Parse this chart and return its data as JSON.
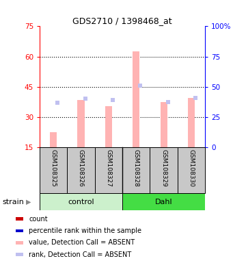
{
  "title": "GDS2710 / 1398468_at",
  "samples": [
    "GSM108325",
    "GSM108326",
    "GSM108327",
    "GSM108328",
    "GSM108329",
    "GSM108330"
  ],
  "bar_values_absent": [
    22.5,
    38.5,
    35.5,
    62.5,
    37.5,
    39.5
  ],
  "rank_absent": [
    37.0,
    39.0,
    38.5,
    45.5,
    37.5,
    39.5
  ],
  "ylim_left": [
    15,
    75
  ],
  "ylim_right": [
    0,
    100
  ],
  "yticks_left": [
    15,
    30,
    45,
    60,
    75
  ],
  "yticks_right": [
    0,
    25,
    50,
    75,
    100
  ],
  "yticklabels_right": [
    "0",
    "25",
    "50",
    "75",
    "100%"
  ],
  "bar_color_absent": "#ffb3b3",
  "rank_color_absent": "#c0c0f0",
  "bar_bottom": 15,
  "control_color": "#ccf0cc",
  "dahl_color": "#44dd44",
  "legend_items": [
    {
      "color": "#cc0000",
      "label": "count"
    },
    {
      "color": "#0000cc",
      "label": "percentile rank within the sample"
    },
    {
      "color": "#ffb3b3",
      "label": "value, Detection Call = ABSENT"
    },
    {
      "color": "#c0c0f0",
      "label": "rank, Detection Call = ABSENT"
    }
  ],
  "strain_label": "strain",
  "control_label": "control",
  "dahl_label": "Dahl",
  "fig_width": 3.41,
  "fig_height": 3.84,
  "dpi": 100
}
